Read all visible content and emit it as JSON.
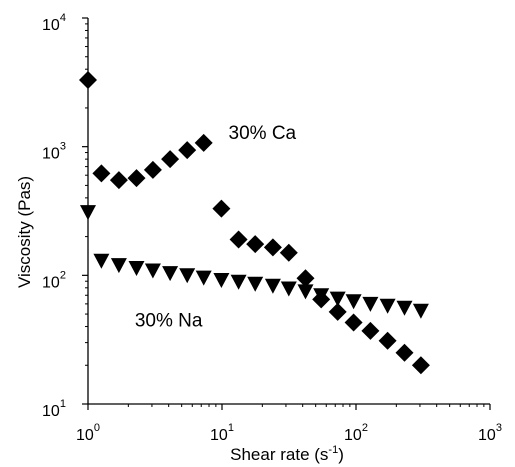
{
  "chart_data": {
    "type": "scatter",
    "xlabel": "Shear rate (s",
    "xlabel_sup": "-1",
    "xlabel_end": ")",
    "ylabel": "Viscosity (Pas)",
    "xscale": "log",
    "yscale": "log",
    "xlim": [
      1,
      1000
    ],
    "ylim": [
      10,
      10000
    ],
    "grid": false,
    "x_ticks": [
      {
        "base": "10",
        "exp": "0",
        "value": 1
      },
      {
        "base": "10",
        "exp": "1",
        "value": 10
      },
      {
        "base": "10",
        "exp": "2",
        "value": 100
      },
      {
        "base": "10",
        "exp": "3",
        "value": 1000
      }
    ],
    "y_ticks": [
      {
        "base": "10",
        "exp": "1",
        "value": 10
      },
      {
        "base": "10",
        "exp": "2",
        "value": 100
      },
      {
        "base": "10",
        "exp": "3",
        "value": 1000
      },
      {
        "base": "10",
        "exp": "4",
        "value": 10000
      }
    ],
    "series": [
      {
        "name": "30% Ca",
        "marker": "diamond",
        "color": "#000000",
        "x": [
          1.0,
          1.26,
          1.7,
          2.3,
          3.05,
          4.1,
          5.5,
          7.3,
          9.9,
          13.3,
          17.7,
          24,
          31.5,
          42,
          55,
          73,
          96,
          128,
          172,
          230,
          305
        ],
        "y": [
          3300,
          620,
          550,
          570,
          660,
          800,
          940,
          1070,
          330,
          190,
          175,
          165,
          150,
          95,
          65,
          52,
          43,
          37,
          31,
          25,
          20
        ]
      },
      {
        "name": "30% Na",
        "marker": "triangle-down",
        "color": "#000000",
        "x": [
          1.0,
          1.26,
          1.7,
          2.3,
          3.05,
          4.1,
          5.5,
          7.3,
          9.9,
          13.3,
          17.7,
          24,
          31.5,
          42,
          55,
          73,
          96,
          128,
          172,
          230,
          305
        ],
        "y": [
          310,
          130,
          120,
          114,
          109,
          104,
          100,
          96,
          92,
          89,
          86,
          83,
          79,
          75,
          70,
          66,
          63,
          60,
          58,
          56,
          53
        ]
      }
    ],
    "annotations": [
      {
        "text": "30% Ca",
        "x": 20,
        "y": 1150
      },
      {
        "text": "30% Na",
        "x": 4,
        "y": 40
      }
    ]
  }
}
